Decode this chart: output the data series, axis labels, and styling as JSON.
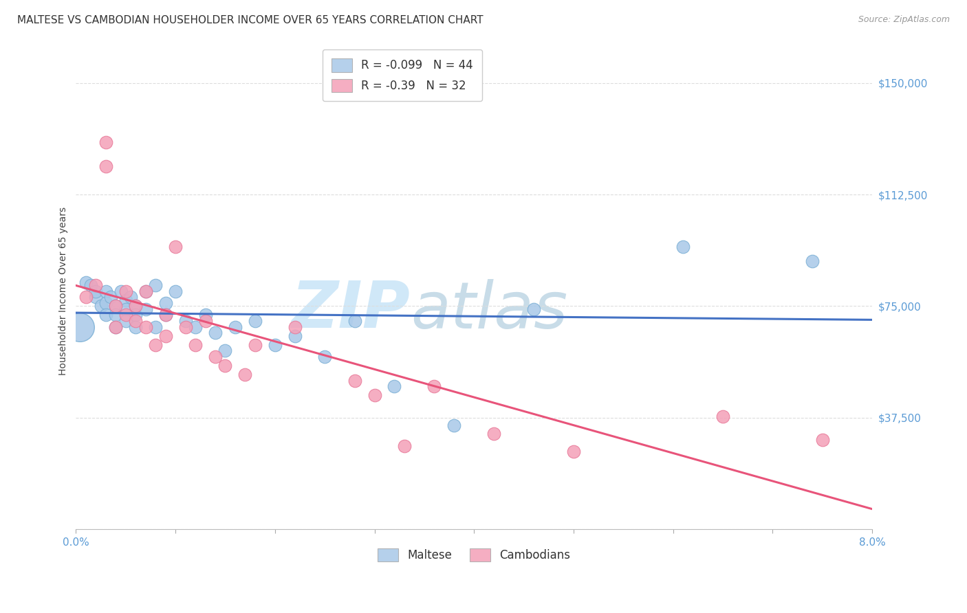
{
  "title": "MALTESE VS CAMBODIAN HOUSEHOLDER INCOME OVER 65 YEARS CORRELATION CHART",
  "source": "Source: ZipAtlas.com",
  "ylabel": "Householder Income Over 65 years",
  "watermark_zip": "ZIP",
  "watermark_atlas": "atlas",
  "xlim": [
    0.0,
    0.08
  ],
  "ylim": [
    0,
    160000
  ],
  "yticks": [
    0,
    37500,
    75000,
    112500,
    150000
  ],
  "ytick_labels": [
    "",
    "$37,500",
    "$75,000",
    "$112,500",
    "$150,000"
  ],
  "maltese_R": -0.099,
  "maltese_N": 44,
  "cambodian_R": -0.39,
  "cambodian_N": 32,
  "maltese_color": "#a8c8e8",
  "cambodian_color": "#f4a0b8",
  "maltese_edge_color": "#7aafd4",
  "cambodian_edge_color": "#e87898",
  "maltese_line_color": "#4472c4",
  "cambodian_line_color": "#e8547a",
  "tick_color": "#5b9bd5",
  "background_color": "#ffffff",
  "grid_color": "#dddddd",
  "watermark_color": "#d0e8f8",
  "maltese_x": [
    0.0004,
    0.001,
    0.0015,
    0.002,
    0.002,
    0.0025,
    0.003,
    0.003,
    0.003,
    0.0035,
    0.004,
    0.004,
    0.004,
    0.0045,
    0.005,
    0.005,
    0.005,
    0.0055,
    0.006,
    0.006,
    0.006,
    0.007,
    0.007,
    0.008,
    0.008,
    0.009,
    0.009,
    0.01,
    0.011,
    0.012,
    0.013,
    0.014,
    0.015,
    0.016,
    0.018,
    0.02,
    0.022,
    0.025,
    0.028,
    0.032,
    0.038,
    0.046,
    0.061,
    0.074
  ],
  "maltese_y": [
    68000,
    83000,
    82000,
    78000,
    80000,
    75000,
    80000,
    76000,
    72000,
    78000,
    75000,
    72000,
    68000,
    80000,
    77000,
    74000,
    70000,
    78000,
    75000,
    72000,
    68000,
    80000,
    74000,
    82000,
    68000,
    76000,
    72000,
    80000,
    70000,
    68000,
    72000,
    66000,
    60000,
    68000,
    70000,
    62000,
    65000,
    58000,
    70000,
    48000,
    35000,
    74000,
    95000,
    90000
  ],
  "cambodian_x": [
    0.001,
    0.002,
    0.003,
    0.003,
    0.004,
    0.004,
    0.005,
    0.005,
    0.006,
    0.006,
    0.007,
    0.007,
    0.008,
    0.009,
    0.009,
    0.01,
    0.011,
    0.012,
    0.013,
    0.014,
    0.015,
    0.017,
    0.018,
    0.022,
    0.028,
    0.03,
    0.033,
    0.036,
    0.042,
    0.05,
    0.065,
    0.075
  ],
  "cambodian_y": [
    78000,
    82000,
    130000,
    122000,
    75000,
    68000,
    80000,
    72000,
    75000,
    70000,
    80000,
    68000,
    62000,
    72000,
    65000,
    95000,
    68000,
    62000,
    70000,
    58000,
    55000,
    52000,
    62000,
    68000,
    50000,
    45000,
    28000,
    48000,
    32000,
    26000,
    38000,
    30000
  ],
  "title_fontsize": 11,
  "source_fontsize": 9,
  "axis_label_fontsize": 10,
  "tick_fontsize": 11,
  "legend_fontsize": 12,
  "watermark_fontsize_zip": 68,
  "watermark_fontsize_atlas": 68,
  "scatter_size": 180,
  "large_scatter_size": 900
}
